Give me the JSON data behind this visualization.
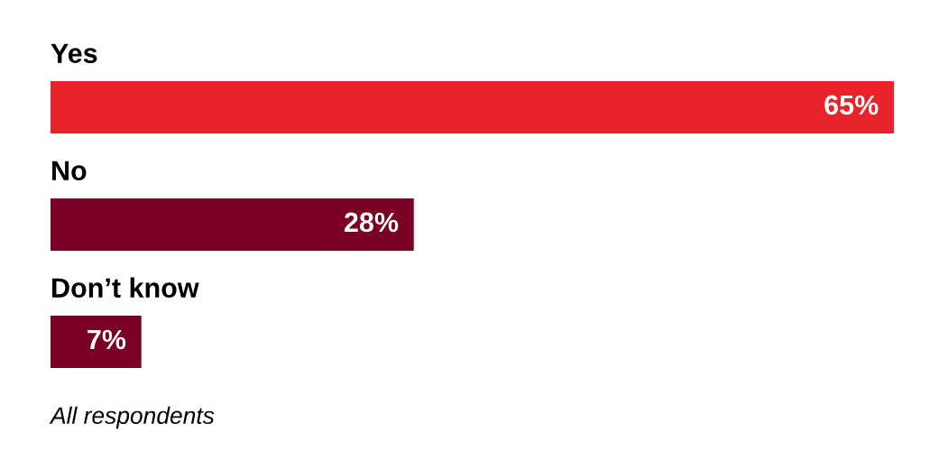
{
  "chart_data": {
    "type": "bar",
    "orientation": "horizontal",
    "categories": [
      "Yes",
      "No",
      "Don’t know"
    ],
    "values": [
      65,
      28,
      7
    ],
    "colors": [
      "#e8232a",
      "#7a0026",
      "#7a0026"
    ],
    "data_labels": true,
    "value_labels": [
      "65%",
      "28%",
      "7%"
    ],
    "annotations": [
      "All respondents"
    ]
  }
}
